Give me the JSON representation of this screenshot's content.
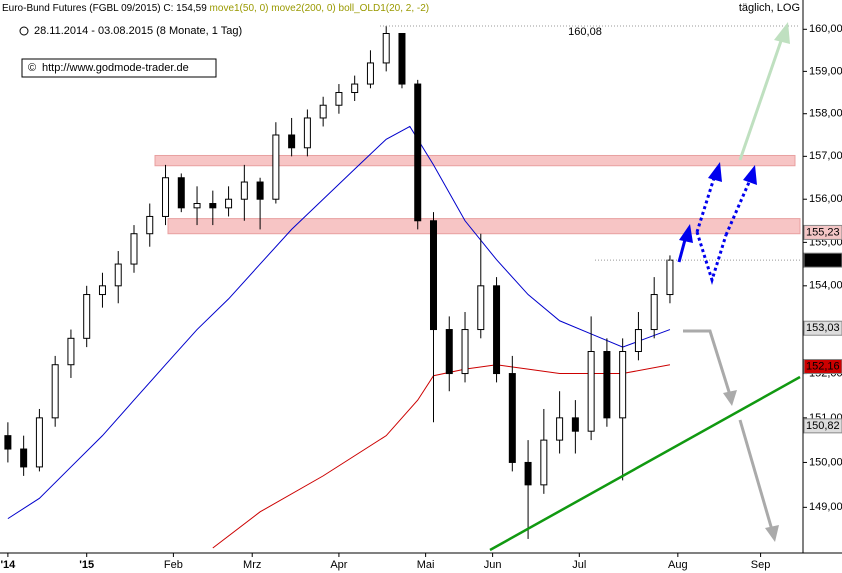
{
  "chart_data": {
    "type": "candlestick",
    "title": "Euro-Bund Futures (FGBL 09/2015)",
    "close_label": "C: 154,59",
    "indicator_extra": "boll_OLD1(20, 2, -2)",
    "subtitle": "28.11.2014 - 03.08.2015 (8 Monate, 1 Tag)",
    "source": "http://www.godmode-trader.de",
    "scale_label": "täglich, LOG",
    "log_scale": true,
    "xlim": [
      -2,
      201
    ],
    "xticks": [
      {
        "value": 0,
        "label": "'14"
      },
      {
        "value": 20,
        "label": "'15"
      },
      {
        "value": 42,
        "label": "Feb"
      },
      {
        "value": 62,
        "label": "Mrz"
      },
      {
        "value": 84,
        "label": "Apr"
      },
      {
        "value": 106,
        "label": "Mai"
      },
      {
        "value": 123,
        "label": "Jun"
      },
      {
        "value": 145,
        "label": "Jul"
      },
      {
        "value": 170,
        "label": "Aug"
      },
      {
        "value": 191,
        "label": "Sep"
      }
    ],
    "ylim": [
      148.1,
      160.7
    ],
    "yticks": [
      {
        "value": 149,
        "label": "149,00"
      },
      {
        "value": 150,
        "label": "150,00"
      },
      {
        "value": 151,
        "label": "151,00"
      },
      {
        "value": 152,
        "label": "152,00"
      },
      {
        "value": 153,
        "label": "153,00"
      },
      {
        "value": 154,
        "label": "154,00"
      },
      {
        "value": 155,
        "label": "155,00"
      },
      {
        "value": 156,
        "label": "156,00"
      },
      {
        "value": 157,
        "label": "157,00"
      },
      {
        "value": 158,
        "label": "158,00"
      },
      {
        "value": 159,
        "label": "159,00"
      },
      {
        "value": 160,
        "label": "160,00"
      }
    ],
    "x": [
      0,
      4,
      8,
      12,
      16,
      20,
      24,
      28,
      32,
      36,
      40,
      44,
      48,
      52,
      56,
      60,
      64,
      68,
      72,
      76,
      80,
      84,
      88,
      92,
      96,
      100,
      104,
      108,
      112,
      116,
      120,
      124,
      128,
      132,
      136,
      140,
      144,
      148,
      152,
      156,
      160,
      164,
      168
    ],
    "open": [
      150.6,
      150.3,
      149.9,
      151.0,
      152.2,
      152.8,
      153.8,
      154.0,
      154.5,
      155.2,
      155.6,
      156.5,
      155.8,
      155.9,
      155.8,
      156.0,
      156.4,
      156.0,
      157.5,
      157.2,
      157.9,
      158.2,
      158.5,
      158.7,
      159.2,
      159.9,
      158.7,
      155.5,
      153.0,
      152.0,
      153.0,
      154.0,
      152.0,
      150.0,
      149.5,
      150.5,
      151.0,
      150.7,
      152.5,
      151.0,
      152.5,
      153.0,
      153.8
    ],
    "high": [
      150.9,
      150.6,
      151.2,
      152.4,
      153.0,
      154.0,
      154.3,
      154.8,
      155.4,
      155.9,
      156.8,
      156.6,
      156.3,
      156.2,
      156.3,
      156.8,
      156.5,
      157.8,
      157.9,
      158.1,
      158.4,
      158.7,
      158.9,
      159.5,
      160.08,
      159.9,
      158.8,
      155.7,
      153.3,
      153.4,
      155.2,
      154.2,
      152.4,
      150.5,
      151.2,
      151.6,
      151.4,
      153.3,
      152.8,
      152.8,
      153.4,
      154.2,
      154.7
    ],
    "low": [
      150.0,
      149.7,
      149.8,
      150.8,
      151.9,
      152.6,
      153.5,
      153.6,
      154.3,
      154.9,
      155.4,
      155.7,
      155.4,
      155.4,
      155.6,
      155.5,
      155.3,
      155.9,
      157.0,
      157.0,
      157.7,
      158.0,
      158.3,
      158.6,
      159.0,
      158.6,
      155.3,
      150.9,
      151.6,
      151.8,
      152.8,
      151.8,
      149.8,
      148.3,
      149.3,
      150.2,
      150.2,
      150.5,
      150.8,
      149.6,
      152.3,
      152.8,
      153.6
    ],
    "close": [
      150.3,
      149.9,
      151.0,
      152.2,
      152.8,
      153.8,
      154.0,
      154.5,
      155.2,
      155.6,
      156.5,
      155.8,
      155.9,
      155.8,
      156.0,
      156.4,
      156.0,
      157.5,
      157.2,
      157.9,
      158.2,
      158.5,
      158.7,
      159.2,
      159.9,
      158.7,
      155.5,
      153.0,
      152.0,
      153.0,
      154.0,
      152.0,
      150.0,
      149.5,
      150.5,
      151.0,
      150.7,
      152.5,
      151.0,
      152.5,
      153.0,
      153.8,
      154.59
    ],
    "series": [
      {
        "name": "move1(50, 0)",
        "color": "#0000cc",
        "x": [
          0,
          8,
          16,
          24,
          32,
          40,
          48,
          56,
          64,
          72,
          80,
          88,
          96,
          102,
          108,
          116,
          124,
          132,
          140,
          148,
          156,
          168
        ],
        "values": [
          148.75,
          149.2,
          149.9,
          150.6,
          151.4,
          152.2,
          153.0,
          153.7,
          154.5,
          155.3,
          156.0,
          156.7,
          157.4,
          157.7,
          156.8,
          155.5,
          154.6,
          153.8,
          153.2,
          152.9,
          152.6,
          153.0
        ]
      },
      {
        "name": "move2(200, 0)",
        "color": "#cc0000",
        "x": [
          52,
          64,
          80,
          96,
          104,
          108,
          116,
          124,
          132,
          140,
          148,
          156,
          168
        ],
        "values": [
          148.1,
          148.9,
          149.7,
          150.6,
          151.4,
          151.95,
          152.1,
          152.2,
          152.1,
          152.0,
          152.0,
          152.0,
          152.2
        ]
      }
    ],
    "levels": {
      "values": [
        160.08,
        155.23,
        154.59,
        153.03,
        152.16,
        150.82
      ],
      "value_labels": [
        "160,08",
        "155,23",
        "154,59",
        "153,03",
        "152,16",
        "150,82"
      ],
      "colors": [
        "#ffffff",
        "#f4c6c6",
        "#000000",
        "#dddddd",
        "#cc0000",
        "#dddddd"
      ]
    },
    "zones": [
      [
        156.78,
        157.02
      ],
      [
        155.2,
        155.55
      ]
    ]
  }
}
